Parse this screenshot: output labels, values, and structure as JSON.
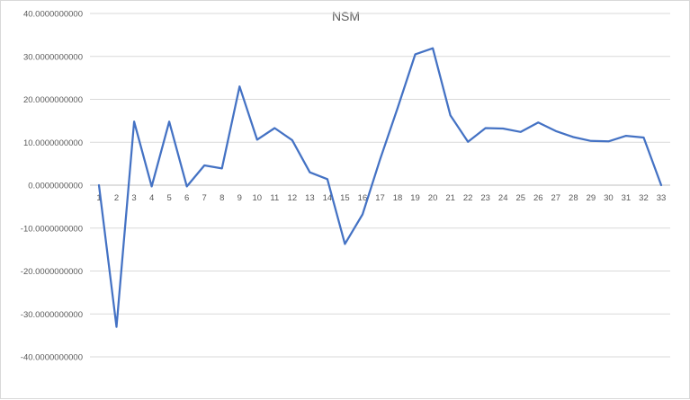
{
  "chart_data": {
    "type": "line",
    "title": "NSM",
    "xlabel": "",
    "ylabel": "",
    "categories": [
      "1",
      "2",
      "3",
      "4",
      "5",
      "6",
      "7",
      "8",
      "9",
      "10",
      "11",
      "12",
      "13",
      "14",
      "15",
      "16",
      "17",
      "18",
      "19",
      "20",
      "21",
      "22",
      "23",
      "24",
      "25",
      "26",
      "27",
      "28",
      "29",
      "30",
      "31",
      "32",
      "33"
    ],
    "series": [
      {
        "values": [
          0.0,
          -33.0,
          14.8,
          -0.3,
          14.8,
          -0.3,
          4.6,
          3.9,
          23.0,
          10.6,
          13.3,
          10.5,
          3.0,
          1.4,
          -13.7,
          -6.8,
          6.0,
          18.0,
          30.5,
          31.9,
          16.3,
          10.1,
          13.3,
          13.2,
          12.4,
          14.6,
          12.6,
          11.2,
          10.3,
          10.2,
          11.5,
          11.1,
          0.0
        ],
        "color": "#4472c4"
      }
    ],
    "ylim": [
      -40,
      40
    ],
    "y_ticks": [
      40,
      30,
      20,
      10,
      0,
      -10,
      -20,
      -30,
      -40
    ],
    "y_tick_labels": [
      "40.0000000000",
      "30.0000000000",
      "20.0000000000",
      "10.0000000000",
      "0.0000000000",
      "-10.0000000000",
      "-20.0000000000",
      "-30.0000000000",
      "-40.0000000000"
    ],
    "grid": true,
    "legend": "none"
  }
}
